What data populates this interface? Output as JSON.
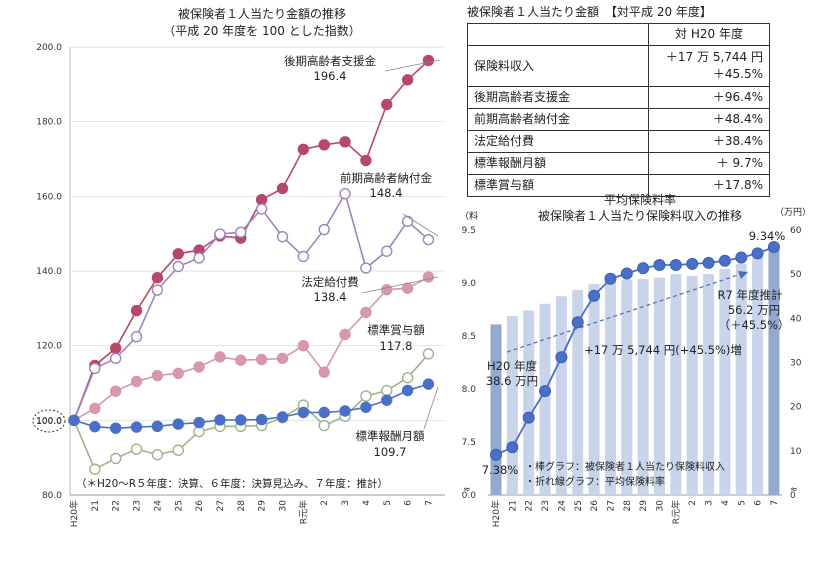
{
  "left_chart": {
    "title_lines": [
      "被保険者１人当たり金額の推移",
      "（平成 20 年度を 100 とした指数）"
    ],
    "y_ticks": [
      "200.0",
      "180.0",
      "160.0",
      "140.0",
      "120.0",
      "100.0",
      "80.0"
    ],
    "x_ticks": [
      "H20年",
      "21",
      "22",
      "23",
      "24",
      "25",
      "26",
      "27",
      "28",
      "29",
      "30",
      "R元年",
      "2",
      "3",
      "4",
      "5",
      "6",
      "7"
    ],
    "base_label": "100.0",
    "note": "（＊H20～R５年度：決算、６年度：決算見込み、７年度：推計）",
    "annotations": {
      "koki_name": "後期高齢者支援金",
      "koki_value": "196.4",
      "zenki_name": "前期高齢者納付金",
      "zenki_value": "148.4",
      "hotei_name": "法定給付費",
      "hotei_value": "138.4",
      "shoyo_name": "標準賞与額",
      "shoyo_value": "117.8",
      "getsugaku_name": "標準報酬月額",
      "getsugaku_value": "109.7"
    }
  },
  "table": {
    "title": "被保険者１人当たり金額　【対平成 20 年度】",
    "header": "対 H20 年度",
    "rows": [
      {
        "item": "保険料収入",
        "value": "＋17 万 5,744 円",
        "value2": "＋45.5%"
      },
      {
        "item": "後期高齢者支援金",
        "value": "＋96.4%"
      },
      {
        "item": "前期高齢者納付金",
        "value": "＋48.4%"
      },
      {
        "item": "法定給付費",
        "value": "＋38.4%"
      },
      {
        "item": "標準報酬月額",
        "value": "＋  9.7%"
      },
      {
        "item": "標準賞与額",
        "value": "＋17.8%"
      }
    ]
  },
  "right_chart": {
    "title_lines": [
      "平均保険料率",
      "被保険者１人当たり保険料収入の推移"
    ],
    "left_axis_unit": "（料",
    "right_axis_unit": "（万円）",
    "left_ticks": [
      "9.5",
      "9.0",
      "8.5",
      "8.0",
      "7.5",
      "0.0"
    ],
    "right_ticks": [
      "60",
      "50",
      "40",
      "30",
      "20",
      "10",
      "0"
    ],
    "x_ticks": [
      "H20年",
      "21",
      "22",
      "23",
      "24",
      "25",
      "26",
      "27",
      "28",
      "29",
      "30",
      "R元年",
      "2",
      "3",
      "4",
      "5",
      "6",
      "7"
    ],
    "label_start_rate": "7.38%",
    "label_end_rate": "9.34%",
    "label_h20_line1": "H20 年度",
    "label_h20_line2": "38.6 万円",
    "label_r7_line1": "R7 年度推計",
    "label_r7_line2": "56.2 万円",
    "label_r7_line3": "（＋45.5%）",
    "label_increase": "+17 万 5,744 円(+45.5%)増",
    "legend_bar": "・棒グラフ：被保険者１人当たり保険料収入",
    "legend_line": "・折れ線グラフ：平均保険料率"
  },
  "chart_data": [
    {
      "type": "line",
      "title": "被保険者１人当たり金額の推移（平成 20 年度を 100 とした指数）",
      "categories": [
        "H20年",
        "21",
        "22",
        "23",
        "24",
        "25",
        "26",
        "27",
        "28",
        "29",
        "30",
        "R元年",
        "2",
        "3",
        "4",
        "5",
        "6",
        "7"
      ],
      "ylim": [
        80,
        200
      ],
      "series": [
        {
          "name": "後期高齢者支援金",
          "color": "#b5486b",
          "values": [
            100.0,
            114.7,
            119.3,
            129.4,
            138.2,
            144.6,
            145.6,
            149.4,
            148.8,
            159.1,
            162.1,
            172.6,
            173.8,
            174.6,
            169.6,
            184.6,
            191.2,
            196.4
          ]
        },
        {
          "name": "前期高齢者納付金",
          "color": "#9a85bf",
          "values": [
            100.0,
            113.9,
            116.6,
            122.4,
            134.9,
            141.2,
            143.5,
            149.9,
            150.4,
            156.6,
            149.2,
            143.9,
            151.1,
            160.7,
            140.8,
            145.3,
            153.3,
            148.4
          ]
        },
        {
          "name": "法定給付費",
          "color": "#d797ac",
          "values": [
            100.0,
            103.2,
            107.8,
            110.4,
            112.0,
            112.6,
            114.3,
            117.0,
            116.1,
            116.3,
            116.6,
            120.0,
            112.9,
            123.0,
            128.9,
            135.0,
            135.4,
            138.4
          ]
        },
        {
          "name": "標準賞与額",
          "color": "#9fb38a",
          "values": [
            100.0,
            86.9,
            89.8,
            92.3,
            90.8,
            92.0,
            97.0,
            98.4,
            98.4,
            98.6,
            100.7,
            104.1,
            98.6,
            101.1,
            106.5,
            108.0,
            111.4,
            117.8
          ]
        },
        {
          "name": "標準報酬月額",
          "color": "#4a6fc7",
          "values": [
            100.0,
            98.3,
            97.9,
            98.2,
            98.4,
            99.0,
            99.4,
            100.1,
            100.1,
            100.2,
            100.9,
            102.1,
            102.1,
            102.5,
            103.5,
            105.4,
            108.0,
            109.7
          ]
        }
      ]
    },
    {
      "type": "bar",
      "title": "平均保険料率 / 被保険者１人当たり保険料収入の推移",
      "categories": [
        "H20年",
        "21",
        "22",
        "23",
        "24",
        "25",
        "26",
        "27",
        "28",
        "29",
        "30",
        "R元年",
        "2",
        "3",
        "4",
        "5",
        "6",
        "7"
      ],
      "series": [
        {
          "name": "被保険者１人当たり保険料収入",
          "axis": "right",
          "unit": "万円",
          "values": [
            38.6,
            40.5,
            41.8,
            43.3,
            45.0,
            46.4,
            47.8,
            48.9,
            48.8,
            48.9,
            49.2,
            50.0,
            49.6,
            50.0,
            51.2,
            52.4,
            54.1,
            56.2
          ]
        },
        {
          "name": "平均保険料率",
          "axis": "left",
          "type": "line",
          "unit": "%",
          "values": [
            7.38,
            7.45,
            7.73,
            7.98,
            8.3,
            8.63,
            8.88,
            9.04,
            9.09,
            9.14,
            9.17,
            9.17,
            9.18,
            9.19,
            9.21,
            9.24,
            9.28,
            9.34
          ]
        }
      ],
      "left_ylim": [
        7.0,
        9.5
      ],
      "right_ylim": [
        0,
        60
      ]
    }
  ]
}
